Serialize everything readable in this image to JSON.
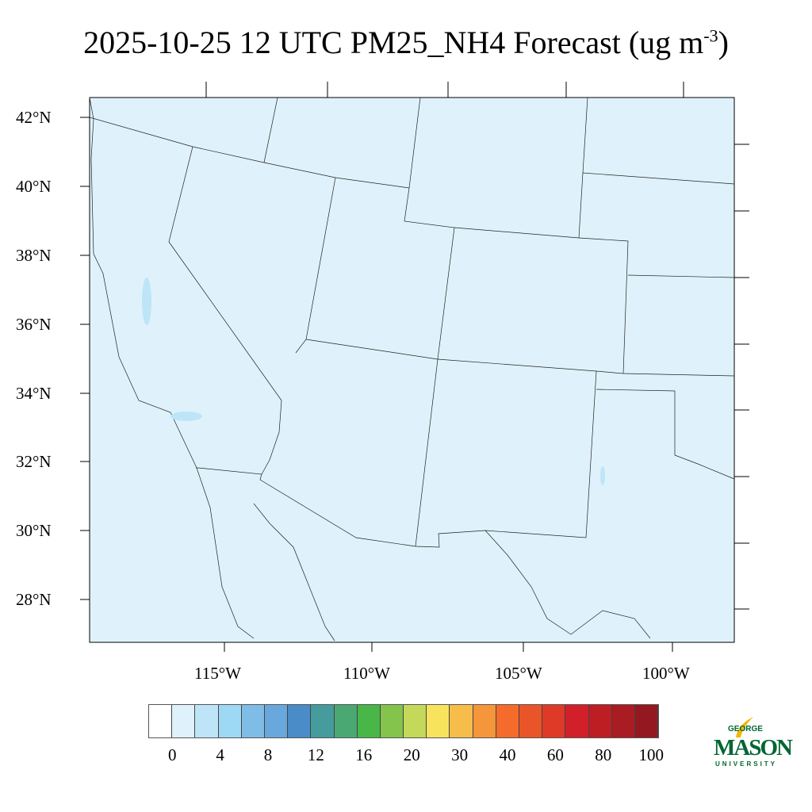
{
  "title": {
    "text": "2025-10-25 12 UTC PM25_NH4 Forecast (ug m",
    "superscript": "-3",
    "close": ")"
  },
  "map": {
    "variable": "PM25_NH4",
    "background_color": "#dff2fb",
    "lat_labels": [
      "42°N",
      "40°N",
      "38°N",
      "36°N",
      "34°N",
      "32°N",
      "30°N",
      "28°N"
    ],
    "lon_labels": [
      "115°W",
      "110°W",
      "105°W",
      "100°W"
    ]
  },
  "colorbar": {
    "colors": [
      "#ffffff",
      "#dff2fb",
      "#bde5f7",
      "#9dd8f5",
      "#7fbde6",
      "#68a8dc",
      "#4a8cc8",
      "#469b9c",
      "#4aa872",
      "#49b648",
      "#84c44c",
      "#c4d95a",
      "#f8e45c",
      "#f7bd4b",
      "#f6963a",
      "#f46b2c",
      "#ea5429",
      "#de3a27",
      "#d12029",
      "#bd1e24",
      "#a81c22",
      "#941820"
    ],
    "labels": [
      "0",
      "4",
      "8",
      "12",
      "16",
      "20",
      "30",
      "40",
      "60",
      "80",
      "100"
    ]
  },
  "logo": {
    "line1": "GEORGE",
    "line2": "MASON",
    "line3": "UNIVERSITY",
    "color": "#006633",
    "accent": "#f2b800"
  }
}
